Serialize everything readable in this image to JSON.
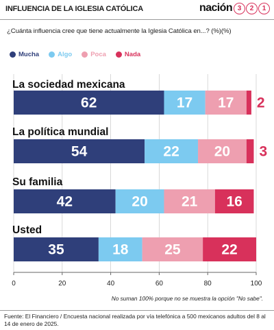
{
  "header": {
    "title": "INFLUENCIA DE LA IGLESIA CATÓLICA",
    "brand_word": "nación",
    "brand_digits": [
      "3",
      "2",
      "1"
    ]
  },
  "question": "¿Cuánta influencia cree que tiene actualmente la Iglesia Católica en...? (%)(%)",
  "footnote": "No suman 100% porque no se muestra la opción \"No sabe\".",
  "source": "Fuente: El Financiero / Encuesta nacional realizada por vía telefónica a 500 mexicanos adultos del 8 al 14 de enero de 2025.",
  "chart_data": {
    "type": "bar",
    "orientation": "horizontal",
    "stacked": true,
    "categories": [
      "La sociedad mexicana",
      "La política mundial",
      "Su familia",
      "Usted"
    ],
    "series": [
      {
        "name": "Mucha",
        "color": "#2f3f7a",
        "values": [
          62,
          54,
          42,
          35
        ]
      },
      {
        "name": "Algo",
        "color": "#7ccaf0",
        "values": [
          17,
          22,
          20,
          18
        ]
      },
      {
        "name": "Poca",
        "color": "#ee9fb0",
        "values": [
          17,
          20,
          21,
          25
        ]
      },
      {
        "name": "Nada",
        "color": "#d8315b",
        "values": [
          2,
          3,
          16,
          22
        ]
      }
    ],
    "xlim": [
      0,
      100
    ],
    "xticks": [
      0,
      20,
      40,
      60,
      80,
      100
    ],
    "grid": true,
    "legend_placement": "top-left"
  }
}
